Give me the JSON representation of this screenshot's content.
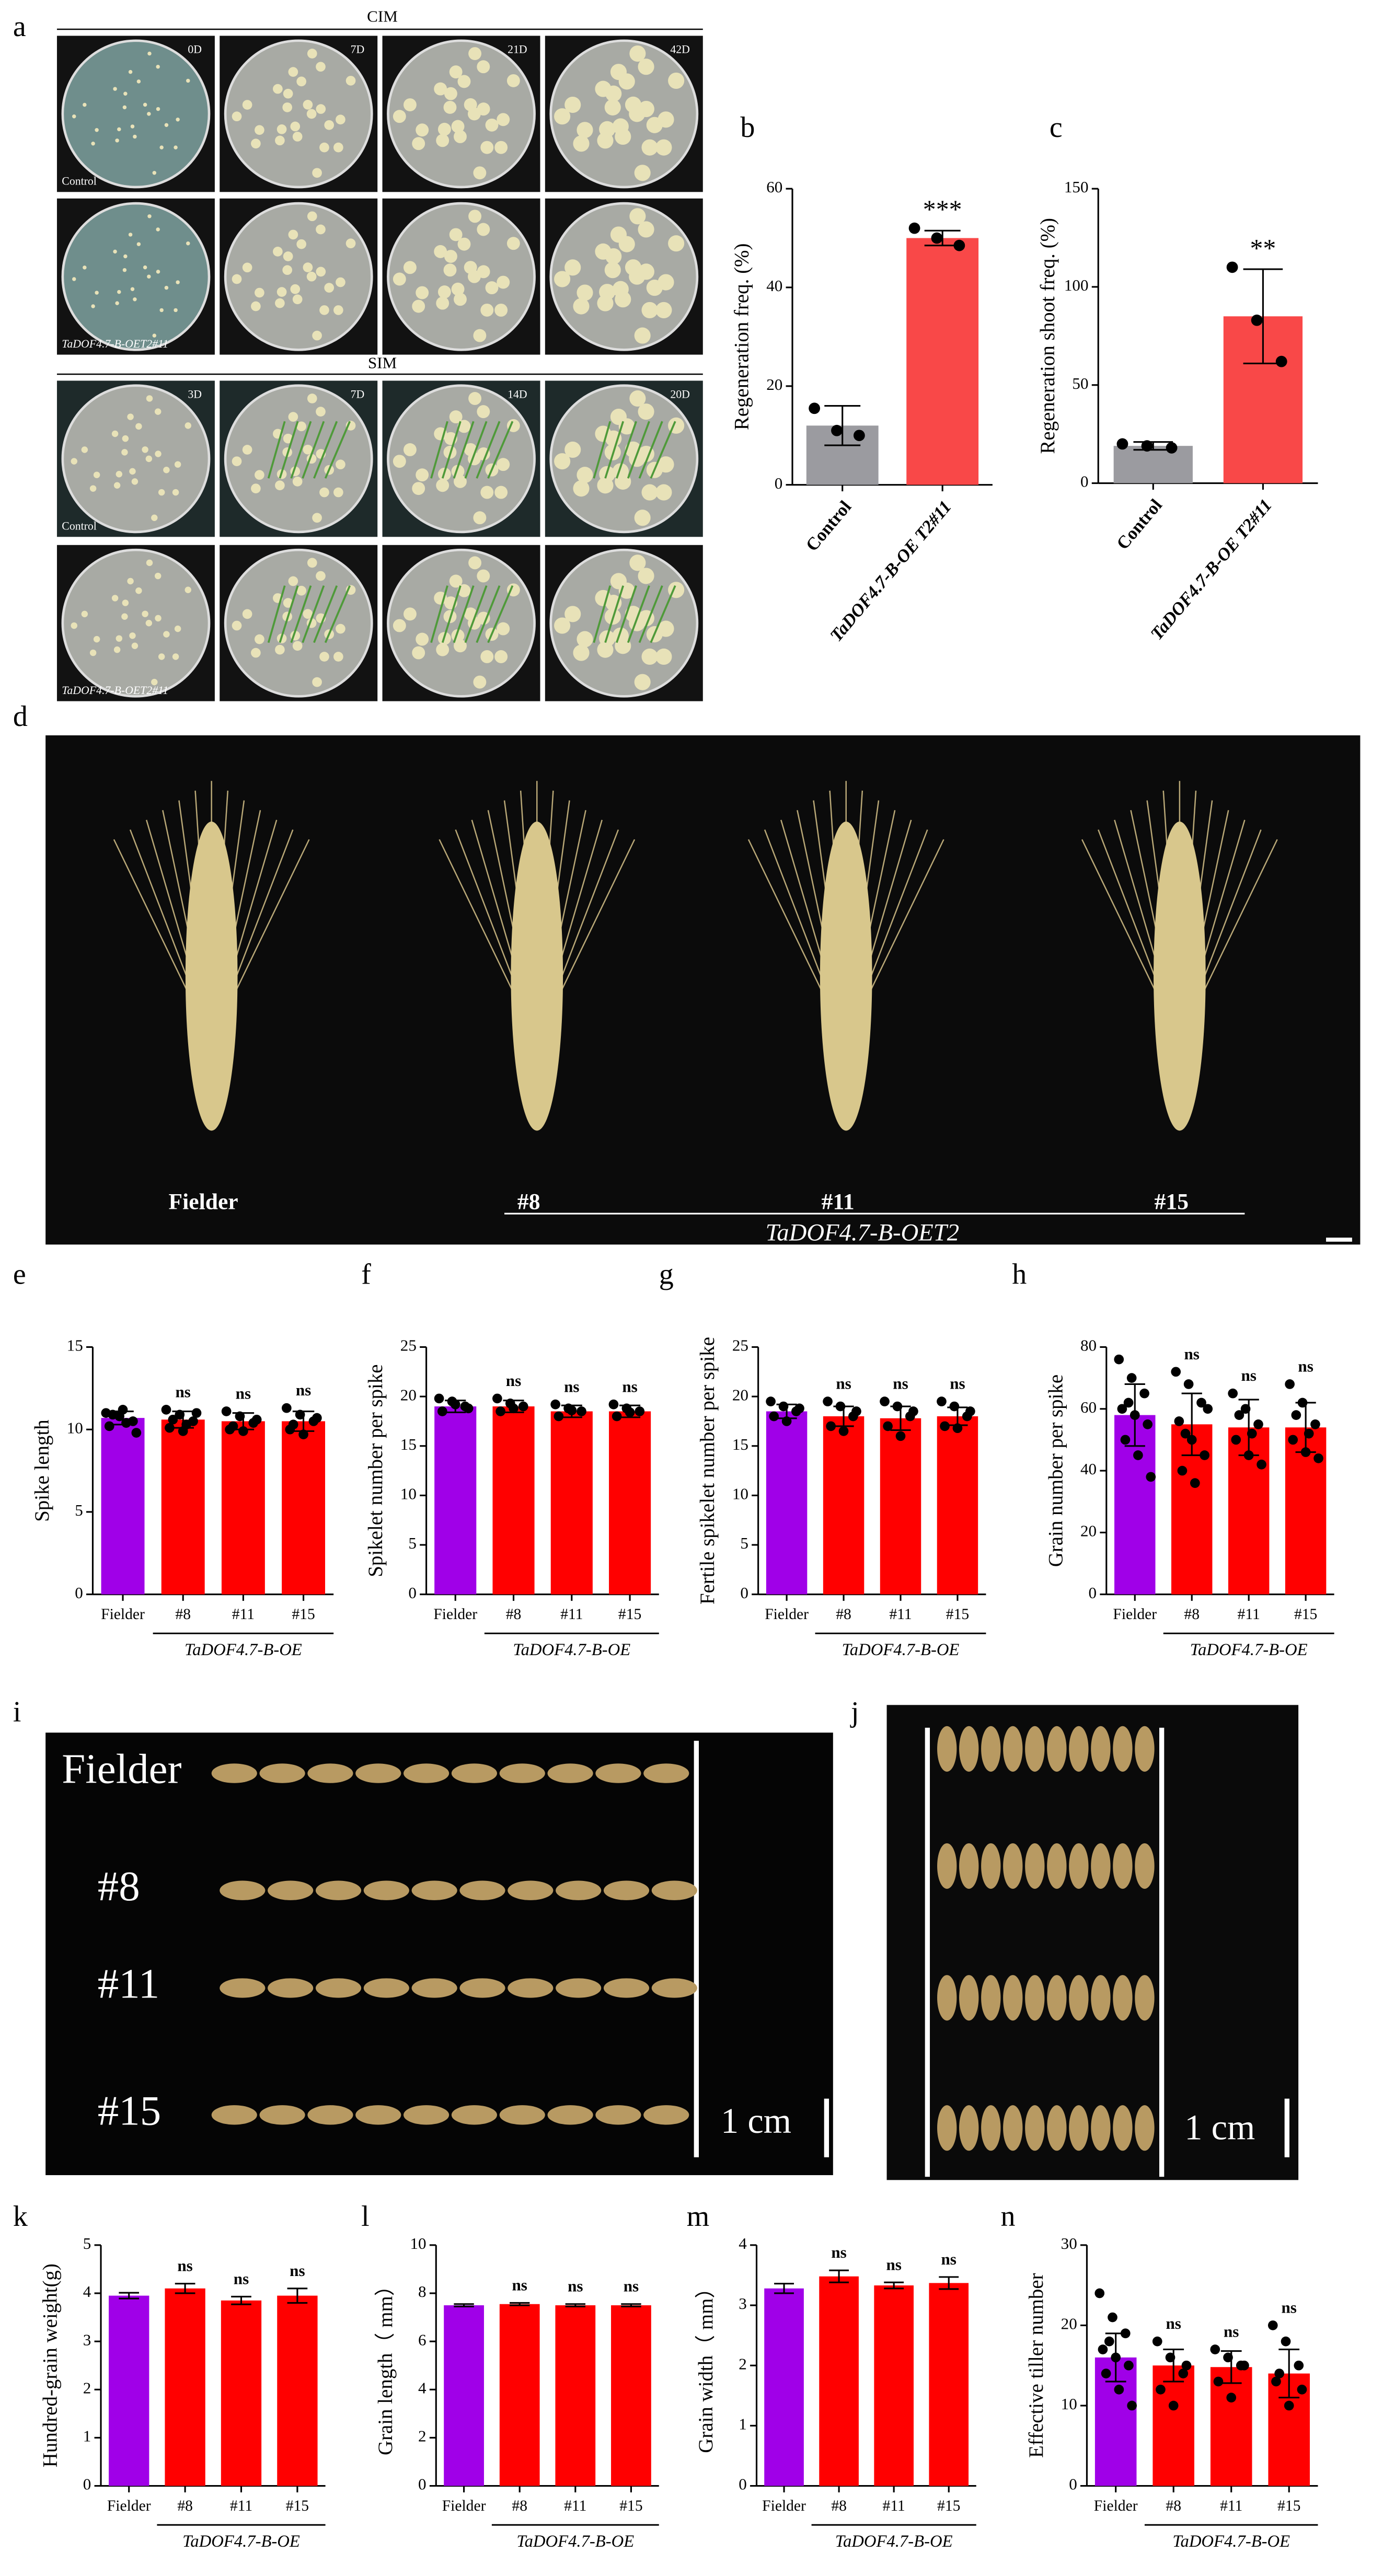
{
  "chart_data": [
    {
      "type": "bar",
      "panel_label": "b",
      "y_label": "Regeneration freq. (%)",
      "categories": [
        "Control",
        "TaDOF4.7-B-OE T2#11"
      ],
      "values": [
        12,
        50
      ],
      "errors": [
        4,
        1.5
      ],
      "points": [
        [
          15.5,
          11,
          10
        ],
        [
          52,
          50,
          48.5
        ]
      ],
      "colors": [
        "#9b9ba0",
        "#f94848"
      ],
      "annotations": [
        null,
        "***"
      ],
      "ylim": [
        0,
        60
      ],
      "yticks": [
        0,
        20,
        40,
        60
      ]
    },
    {
      "type": "bar",
      "panel_label": "c",
      "y_label": "Regeneration shoot freq. (%)",
      "categories": [
        "Control",
        "TaDOF4.7-B-OE T2#11"
      ],
      "values": [
        19,
        85
      ],
      "errors": [
        2,
        24
      ],
      "points": [
        [
          20,
          19,
          18
        ],
        [
          110,
          83,
          62
        ]
      ],
      "colors": [
        "#9b9ba0",
        "#f94848"
      ],
      "annotations": [
        null,
        "**"
      ],
      "ylim": [
        0,
        150
      ],
      "yticks": [
        0,
        50,
        100,
        150
      ]
    },
    {
      "type": "bar",
      "panel_label": "e",
      "y_label": "Spike length",
      "categories": [
        "Fielder",
        "#8",
        "#11",
        "#15"
      ],
      "group_label": "TaDOF4.7-B-OE",
      "values": [
        10.7,
        10.6,
        10.5,
        10.5
      ],
      "errors": [
        0.4,
        0.5,
        0.5,
        0.6
      ],
      "points": [
        [
          11.0,
          10.8,
          10.5,
          10.2,
          11.2,
          9.8,
          10.9,
          10.4
        ],
        [
          11.2,
          10.9,
          10.5,
          10.1,
          9.9,
          11.0,
          10.6,
          10.3
        ],
        [
          11.1,
          10.8,
          10.4,
          10.0,
          9.9,
          10.6,
          10.2
        ],
        [
          11.3,
          10.9,
          10.5,
          10.0,
          9.7,
          10.7,
          10.3
        ]
      ],
      "colors": [
        "#a000e8",
        "#ff0000",
        "#ff0000",
        "#ff0000"
      ],
      "annotations": [
        null,
        "ns",
        "ns",
        "ns"
      ],
      "ylim": [
        0,
        15
      ],
      "yticks": [
        0,
        5,
        10,
        15
      ]
    },
    {
      "type": "bar",
      "panel_label": "f",
      "y_label": "Spikelet number per spike",
      "categories": [
        "Fielder",
        "#8",
        "#11",
        "#15"
      ],
      "group_label": "TaDOF4.7-B-OE",
      "values": [
        19,
        19,
        18.5,
        18.5
      ],
      "errors": [
        0.6,
        0.6,
        0.6,
        0.6
      ],
      "points": [
        [
          19.8,
          19.5,
          19,
          18.5,
          19.2,
          18.8
        ],
        [
          19.8,
          19.3,
          19,
          18.5,
          18.8
        ],
        [
          19.2,
          18.8,
          18.5,
          18,
          18.6
        ],
        [
          19.2,
          18.8,
          18.5,
          18,
          18.4
        ]
      ],
      "colors": [
        "#a000e8",
        "#ff0000",
        "#ff0000",
        "#ff0000"
      ],
      "annotations": [
        null,
        "ns",
        "ns",
        "ns"
      ],
      "ylim": [
        0,
        25
      ],
      "yticks": [
        0,
        5,
        10,
        15,
        20,
        25
      ]
    },
    {
      "type": "bar",
      "panel_label": "g",
      "y_label": "Fertile spikelet number per spike",
      "categories": [
        "Fielder",
        "#8",
        "#11",
        "#15"
      ],
      "group_label": "TaDOF4.7-B-OE",
      "values": [
        18.5,
        18,
        17.8,
        18
      ],
      "errors": [
        0.7,
        1,
        1.2,
        0.9
      ],
      "points": [
        [
          19.5,
          19,
          18.5,
          18,
          17.5,
          18.8
        ],
        [
          19.5,
          19,
          18,
          17,
          16.5,
          18.5
        ],
        [
          19.5,
          19,
          18,
          17,
          16,
          18.5
        ],
        [
          19.5,
          19,
          18,
          17,
          16.8,
          18.5
        ]
      ],
      "colors": [
        "#a000e8",
        "#ff0000",
        "#ff0000",
        "#ff0000"
      ],
      "annotations": [
        null,
        "ns",
        "ns",
        "ns"
      ],
      "ylim": [
        0,
        25
      ],
      "yticks": [
        0,
        5,
        10,
        15,
        20,
        25
      ]
    },
    {
      "type": "bar",
      "panel_label": "h",
      "y_label": "Grain number per spike",
      "categories": [
        "Fielder",
        "#8",
        "#11",
        "#15"
      ],
      "group_label": "TaDOF4.7-B-OE",
      "values": [
        58,
        55,
        54,
        54
      ],
      "errors": [
        10,
        10,
        9,
        8
      ],
      "points": [
        [
          76,
          70,
          65,
          60,
          58,
          55,
          50,
          45,
          38,
          62
        ],
        [
          72,
          68,
          62,
          56,
          50,
          45,
          40,
          36,
          60,
          52
        ],
        [
          65,
          60,
          55,
          50,
          45,
          42,
          58,
          52
        ],
        [
          68,
          62,
          55,
          50,
          46,
          44,
          58,
          52
        ]
      ],
      "colors": [
        "#a000e8",
        "#ff0000",
        "#ff0000",
        "#ff0000"
      ],
      "annotations": [
        null,
        "ns",
        "ns",
        "ns"
      ],
      "ylim": [
        0,
        80
      ],
      "yticks": [
        0,
        20,
        40,
        60,
        80
      ]
    },
    {
      "type": "bar",
      "panel_label": "k",
      "y_label": "Hundred-grain weight(g)",
      "categories": [
        "Fielder",
        "#8",
        "#11",
        "#15"
      ],
      "group_label": "TaDOF4.7-B-OE",
      "values": [
        3.95,
        4.1,
        3.85,
        3.95
      ],
      "errors": [
        0.06,
        0.1,
        0.08,
        0.15
      ],
      "colors": [
        "#a000e8",
        "#ff0000",
        "#ff0000",
        "#ff0000"
      ],
      "annotations": [
        null,
        "ns",
        "ns",
        "ns"
      ],
      "ylim": [
        0,
        5
      ],
      "yticks": [
        0,
        1,
        2,
        3,
        4,
        5
      ]
    },
    {
      "type": "bar",
      "panel_label": "l",
      "y_label": "Grain length（ mm）",
      "categories": [
        "Fielder",
        "#8",
        "#11",
        "#15"
      ],
      "group_label": "TaDOF4.7-B-OE",
      "values": [
        7.5,
        7.55,
        7.5,
        7.5
      ],
      "errors": [
        0.05,
        0.05,
        0.05,
        0.05
      ],
      "colors": [
        "#a000e8",
        "#ff0000",
        "#ff0000",
        "#ff0000"
      ],
      "annotations": [
        null,
        "ns",
        "ns",
        "ns"
      ],
      "ylim": [
        0,
        10
      ],
      "yticks": [
        0,
        2,
        4,
        6,
        8,
        10
      ]
    },
    {
      "type": "bar",
      "panel_label": "m",
      "y_label": "Grain width（ mm）",
      "categories": [
        "Fielder",
        "#8",
        "#11",
        "#15"
      ],
      "group_label": "TaDOF4.7-B-OE",
      "values": [
        3.28,
        3.48,
        3.33,
        3.37
      ],
      "errors": [
        0.08,
        0.1,
        0.05,
        0.1
      ],
      "colors": [
        "#a000e8",
        "#ff0000",
        "#ff0000",
        "#ff0000"
      ],
      "annotations": [
        null,
        "ns",
        "ns",
        "ns"
      ],
      "ylim": [
        0,
        4
      ],
      "yticks": [
        0,
        1,
        2,
        3,
        4
      ]
    },
    {
      "type": "bar",
      "panel_label": "n",
      "y_label": "Effective tiller number",
      "categories": [
        "Fielder",
        "#8",
        "#11",
        "#15"
      ],
      "group_label": "TaDOF4.7-B-OE",
      "values": [
        16,
        15,
        14.8,
        14
      ],
      "errors": [
        3,
        2,
        2,
        3
      ],
      "points": [
        [
          24,
          21,
          19,
          17,
          16,
          15,
          14,
          12,
          10,
          18
        ],
        [
          18,
          16,
          14,
          12,
          10,
          15
        ],
        [
          17,
          16,
          15,
          13,
          11,
          15
        ],
        [
          20,
          18,
          15,
          13,
          10,
          12,
          14
        ]
      ],
      "colors": [
        "#a000e8",
        "#ff0000",
        "#ff0000",
        "#ff0000"
      ],
      "annotations": [
        null,
        "ns",
        "ns",
        "ns"
      ],
      "ylim": [
        0,
        30
      ],
      "yticks": [
        0,
        10,
        20,
        30
      ]
    }
  ],
  "photos": {
    "a": {
      "panel_label": "a",
      "cim": "CIM",
      "sim": "SIM",
      "cim_days": [
        "0D",
        "7D",
        "21D",
        "42D"
      ],
      "sim_days": [
        "3D",
        "7D",
        "14D",
        "20D"
      ],
      "control": "Control",
      "transgenic": "TaDOF4.7-B-OET2#11"
    },
    "d": {
      "panel_label": "d",
      "lines": [
        "Fielder",
        "#8",
        "#11",
        "#15"
      ],
      "group_label": "TaDOF4.7-B-OET2"
    },
    "i": {
      "panel_label": "i",
      "lines": [
        "Fielder",
        "#8",
        "#11",
        "#15"
      ],
      "scale": "1 cm"
    },
    "j": {
      "panel_label": "j",
      "scale": "1 cm"
    }
  }
}
